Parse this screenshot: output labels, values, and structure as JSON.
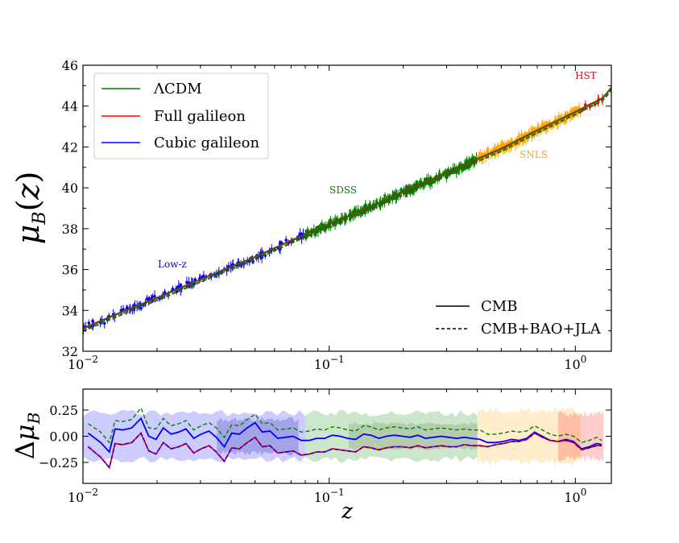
{
  "chart_data": [
    {
      "type": "scatter",
      "title": "",
      "xlabel": "",
      "ylabel": "μ_B(z)",
      "xscale": "log",
      "xlim": [
        0.01,
        1.4
      ],
      "ylim": [
        32,
        46
      ],
      "x_ticks": [
        {
          "value": 0.01,
          "base": "10",
          "exp": "−2"
        },
        {
          "value": 0.1,
          "base": "10",
          "exp": "−1"
        },
        {
          "value": 1,
          "base": "10",
          "exp": "0"
        }
      ],
      "y_ticks": [
        "32",
        "34",
        "36",
        "38",
        "40",
        "42",
        "44",
        "46"
      ],
      "legend": {
        "placement": "top-left",
        "entries": [
          {
            "label": "ΛCDM",
            "color": "#008000"
          },
          {
            "label": "Full galileon",
            "color": "#ff0000"
          },
          {
            "label": "Cubic galileon",
            "color": "#0000ff"
          }
        ]
      },
      "legend_linestyle": {
        "placement": "bottom-right",
        "entries": [
          {
            "label": "CMB",
            "style": "solid"
          },
          {
            "label": "CMB+BAO+JLA",
            "style": "dashed"
          }
        ]
      },
      "datasets": [
        {
          "label": "Low-z",
          "color": "#0000ff",
          "z_range": [
            0.01,
            0.08
          ]
        },
        {
          "label": "SDSS",
          "color": "#008000",
          "z_range": [
            0.08,
            0.4
          ]
        },
        {
          "label": "SNLS",
          "color": "#ffa500",
          "z_range": [
            0.4,
            1.05
          ]
        },
        {
          "label": "HST",
          "color": "#ff0000",
          "z_range": [
            0.9,
            1.3
          ]
        }
      ],
      "model_curve": {
        "z": [
          0.01,
          0.015,
          0.02,
          0.03,
          0.05,
          0.07,
          0.1,
          0.15,
          0.2,
          0.3,
          0.4,
          0.5,
          0.7,
          1.0,
          1.3,
          1.4
        ],
        "mu": [
          33.1,
          34.0,
          34.6,
          35.5,
          36.6,
          37.4,
          38.2,
          39.1,
          39.8,
          40.7,
          41.4,
          41.9,
          42.8,
          43.7,
          44.4,
          44.9
        ]
      }
    },
    {
      "type": "line",
      "title": "",
      "xlabel": "z",
      "ylabel": "Δμ_B",
      "xscale": "log",
      "xlim": [
        0.01,
        1.4
      ],
      "ylim": [
        -0.45,
        0.45
      ],
      "x_ticks": [
        {
          "value": 0.01,
          "base": "10",
          "exp": "−2"
        },
        {
          "value": 0.1,
          "base": "10",
          "exp": "−1"
        },
        {
          "value": 1,
          "base": "10",
          "exp": "0"
        }
      ],
      "y_ticks": [
        "0.25",
        "0.00",
        "−0.25"
      ],
      "x": [
        0.0105,
        0.0118,
        0.0128,
        0.0135,
        0.0145,
        0.0158,
        0.0172,
        0.0185,
        0.0198,
        0.0212,
        0.0228,
        0.0245,
        0.0262,
        0.0282,
        0.0302,
        0.0325,
        0.0348,
        0.0375,
        0.0402,
        0.0432,
        0.0465,
        0.05,
        0.0535,
        0.0575,
        0.0618,
        0.0665,
        0.0715,
        0.077,
        0.083,
        0.089,
        0.096,
        0.103,
        0.111,
        0.119,
        0.128,
        0.138,
        0.148,
        0.159,
        0.171,
        0.184,
        0.198,
        0.213,
        0.229,
        0.246,
        0.265,
        0.285,
        0.306,
        0.329,
        0.354,
        0.38,
        0.41,
        0.44,
        0.475,
        0.51,
        0.55,
        0.59,
        0.635,
        0.683,
        0.735,
        0.79,
        0.85,
        0.915,
        0.985,
        1.06,
        1.14,
        1.22,
        1.28
      ],
      "series": [
        {
          "name": "",
          "color": "#008000",
          "style": "dashed",
          "values": [
            0.12,
            0.04,
            -0.06,
            0.15,
            0.14,
            0.16,
            0.27,
            0.08,
            0.07,
            0.17,
            0.1,
            0.12,
            0.15,
            0.06,
            0.1,
            0.13,
            0.08,
            -0.01,
            0.11,
            0.1,
            0.16,
            0.21,
            0.12,
            0.13,
            0.06,
            0.07,
            0.08,
            0.04,
            0.05,
            0.07,
            0.06,
            0.09,
            0.08,
            0.06,
            0.05,
            0.1,
            0.09,
            0.06,
            0.08,
            0.09,
            0.08,
            0.07,
            0.09,
            0.06,
            0.07,
            0.08,
            0.07,
            0.06,
            0.07,
            0.06,
            0.06,
            0.02,
            0.02,
            0.03,
            0.05,
            0.04,
            0.05,
            0.1,
            0.06,
            0.02,
            0.0,
            0.02,
            0.0,
            -0.06,
            -0.04,
            -0.01,
            -0.04
          ]
        },
        {
          "name": "",
          "color": "#0000ff",
          "style": "solid",
          "values": [
            0.03,
            -0.06,
            -0.15,
            0.07,
            0.06,
            0.08,
            0.17,
            0.0,
            -0.03,
            0.08,
            0.02,
            0.04,
            0.07,
            -0.02,
            0.02,
            0.05,
            -0.01,
            -0.1,
            0.03,
            0.02,
            0.08,
            0.13,
            0.04,
            0.05,
            -0.02,
            -0.01,
            0.0,
            -0.04,
            -0.04,
            -0.02,
            -0.02,
            0.01,
            0.0,
            -0.02,
            -0.03,
            0.02,
            0.01,
            -0.02,
            0.0,
            0.01,
            0.0,
            -0.01,
            0.01,
            -0.02,
            -0.01,
            0.0,
            -0.01,
            -0.02,
            -0.01,
            -0.02,
            -0.03,
            -0.06,
            -0.06,
            -0.05,
            -0.03,
            -0.04,
            -0.02,
            0.04,
            0.0,
            -0.04,
            -0.05,
            -0.03,
            -0.05,
            -0.12,
            -0.1,
            -0.07,
            -0.08
          ]
        },
        {
          "name": "",
          "color": "#ff0000",
          "style": "solid",
          "values": [
            -0.1,
            -0.2,
            -0.3,
            -0.07,
            -0.08,
            -0.06,
            0.03,
            -0.14,
            -0.17,
            -0.06,
            -0.12,
            -0.1,
            -0.07,
            -0.16,
            -0.12,
            -0.09,
            -0.15,
            -0.24,
            -0.11,
            -0.12,
            -0.06,
            -0.01,
            -0.1,
            -0.09,
            -0.16,
            -0.15,
            -0.14,
            -0.18,
            -0.17,
            -0.15,
            -0.15,
            -0.12,
            -0.13,
            -0.14,
            -0.15,
            -0.1,
            -0.11,
            -0.13,
            -0.11,
            -0.1,
            -0.1,
            -0.11,
            -0.09,
            -0.11,
            -0.1,
            -0.09,
            -0.1,
            -0.1,
            -0.08,
            -0.09,
            -0.09,
            -0.1,
            -0.08,
            -0.07,
            -0.05,
            -0.05,
            -0.03,
            0.03,
            -0.01,
            -0.04,
            -0.05,
            -0.04,
            -0.06,
            -0.13,
            -0.11,
            -0.09,
            -0.09
          ]
        },
        {
          "name": "",
          "color": "#0000ff",
          "style": "dashed",
          "values": [
            -0.1,
            -0.2,
            -0.3,
            -0.07,
            -0.08,
            -0.06,
            0.03,
            -0.14,
            -0.17,
            -0.06,
            -0.12,
            -0.1,
            -0.07,
            -0.16,
            -0.12,
            -0.09,
            -0.15,
            -0.24,
            -0.11,
            -0.12,
            -0.06,
            -0.01,
            -0.1,
            -0.09,
            -0.16,
            -0.15,
            -0.14,
            -0.18,
            -0.17,
            -0.15,
            -0.15,
            -0.12,
            -0.13,
            -0.14,
            -0.15,
            -0.1,
            -0.11,
            -0.13,
            -0.11,
            -0.1,
            -0.1,
            -0.11,
            -0.09,
            -0.11,
            -0.1,
            -0.09,
            -0.1,
            -0.1,
            -0.08,
            -0.09,
            -0.09,
            -0.1,
            -0.08,
            -0.07,
            -0.05,
            -0.05,
            -0.03,
            0.03,
            -0.01,
            -0.04,
            -0.05,
            -0.04,
            -0.06,
            -0.13,
            -0.11,
            -0.09,
            -0.09
          ]
        }
      ],
      "error_bands": [
        {
          "color": "#0000ff",
          "z_range": [
            0.01,
            0.08
          ],
          "half_width": 0.22
        },
        {
          "color": "#00008b",
          "z_range": [
            0.035,
            0.075
          ],
          "half_width": 0.16
        },
        {
          "color": "#008000",
          "z_range": [
            0.08,
            0.4
          ],
          "half_width": 0.22
        },
        {
          "color": "#556b2f",
          "z_range": [
            0.12,
            0.4
          ],
          "half_width": 0.12
        },
        {
          "color": "#ffa500",
          "z_range": [
            0.4,
            1.05
          ],
          "half_width": 0.25
        },
        {
          "color": "#ff0000",
          "z_range": [
            0.85,
            1.3
          ],
          "half_width": 0.22
        }
      ]
    }
  ]
}
